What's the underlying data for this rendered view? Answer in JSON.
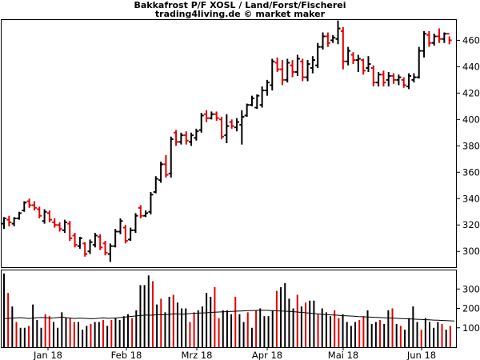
{
  "chart_data": [
    {
      "type": "ohlc",
      "title": "Bakkafrost P/F XOSL / Land/Forst/Fischerei",
      "subtitle": "trading4living.de © market maker",
      "ylim": [
        288,
        476
      ],
      "y_ticks": [
        300,
        320,
        340,
        360,
        380,
        400,
        420,
        440,
        460
      ],
      "x_labels": [
        "Jan 18",
        "Feb 18",
        "Mrz 18",
        "Apr 18",
        "Mai 18",
        "Jun 18"
      ],
      "up_color": "#000000",
      "down_color": "#e00000",
      "grid": false,
      "bars": [
        [
          326,
          317,
          321,
          325
        ],
        [
          327,
          319,
          324,
          322
        ],
        [
          326,
          319,
          321,
          325
        ],
        [
          330,
          324,
          325,
          329
        ],
        [
          338,
          330,
          331,
          337
        ],
        [
          340,
          333,
          338,
          335
        ],
        [
          338,
          331,
          335,
          333
        ],
        [
          334,
          325,
          332,
          327
        ],
        [
          332,
          321,
          323,
          330
        ],
        [
          331,
          322,
          329,
          324
        ],
        [
          325,
          318,
          322,
          320
        ],
        [
          322,
          315,
          320,
          317
        ],
        [
          324,
          314,
          316,
          322
        ],
        [
          323,
          308,
          321,
          310
        ],
        [
          314,
          303,
          312,
          305
        ],
        [
          311,
          302,
          304,
          310
        ],
        [
          307,
          296,
          306,
          298
        ],
        [
          309,
          298,
          300,
          307
        ],
        [
          314,
          303,
          305,
          312
        ],
        [
          313,
          301,
          311,
          303
        ],
        [
          308,
          297,
          306,
          299
        ],
        [
          306,
          292,
          298,
          304
        ],
        [
          317,
          303,
          304,
          315
        ],
        [
          325,
          313,
          315,
          323
        ],
        [
          320,
          306,
          318,
          308
        ],
        [
          318,
          308,
          309,
          316
        ],
        [
          329,
          314,
          316,
          327
        ],
        [
          335,
          325,
          333,
          327
        ],
        [
          331,
          326,
          327,
          329
        ],
        [
          345,
          328,
          330,
          343
        ],
        [
          357,
          344,
          345,
          355
        ],
        [
          368,
          352,
          354,
          366
        ],
        [
          373,
          356,
          366,
          358
        ],
        [
          387,
          356,
          359,
          385
        ],
        [
          392,
          380,
          390,
          383
        ],
        [
          390,
          381,
          383,
          388
        ],
        [
          391,
          381,
          388,
          384
        ],
        [
          390,
          380,
          383,
          388
        ],
        [
          393,
          384,
          386,
          391
        ],
        [
          405,
          390,
          392,
          403
        ],
        [
          407,
          398,
          404,
          401
        ],
        [
          406,
          400,
          401,
          404
        ],
        [
          406,
          399,
          404,
          401
        ],
        [
          402,
          385,
          400,
          387
        ],
        [
          404,
          382,
          388,
          395
        ],
        [
          400,
          393,
          398,
          395
        ],
        [
          401,
          391,
          394,
          398
        ],
        [
          407,
          381,
          396,
          402
        ],
        [
          412,
          402,
          403,
          411
        ],
        [
          418,
          410,
          411,
          416
        ],
        [
          419,
          408,
          409,
          418
        ],
        [
          425,
          409,
          411,
          422
        ],
        [
          430,
          418,
          422,
          428
        ],
        [
          446,
          422,
          426,
          444
        ],
        [
          447,
          436,
          443,
          438
        ],
        [
          445,
          426,
          438,
          430
        ],
        [
          446,
          428,
          430,
          443
        ],
        [
          445,
          432,
          441,
          436
        ],
        [
          449,
          433,
          436,
          446
        ],
        [
          446,
          429,
          444,
          432
        ],
        [
          445,
          429,
          432,
          442
        ],
        [
          448,
          435,
          439,
          445
        ],
        [
          458,
          439,
          441,
          455
        ],
        [
          466,
          453,
          455,
          463
        ],
        [
          466,
          455,
          463,
          458
        ],
        [
          464,
          458,
          460,
          462
        ],
        [
          475,
          457,
          461,
          469
        ],
        [
          470,
          438,
          467,
          444
        ],
        [
          455,
          441,
          444,
          452
        ],
        [
          451,
          442,
          449,
          445
        ],
        [
          449,
          436,
          445,
          446
        ],
        [
          446,
          434,
          445,
          437
        ],
        [
          448,
          436,
          439,
          442
        ],
        [
          441,
          425,
          439,
          428
        ],
        [
          436,
          425,
          428,
          434
        ],
        [
          437,
          425,
          434,
          428
        ],
        [
          436,
          425,
          430,
          433
        ],
        [
          435,
          427,
          433,
          430
        ],
        [
          434,
          426,
          430,
          432
        ],
        [
          432,
          424,
          430,
          426
        ],
        [
          435,
          423,
          425,
          433
        ],
        [
          435,
          428,
          430,
          432
        ],
        [
          455,
          431,
          432,
          452
        ],
        [
          467,
          447,
          452,
          465
        ],
        [
          467,
          455,
          464,
          458
        ],
        [
          465,
          456,
          458,
          463
        ],
        [
          469,
          458,
          463,
          461
        ],
        [
          466,
          458,
          461,
          465
        ],
        [
          463,
          457,
          465,
          460
        ]
      ]
    },
    {
      "type": "bar",
      "series": [
        {
          "values": [
            380,
            280,
            210,
            130,
            100,
            100,
            110,
            220,
            140,
            100,
            170,
            160,
            130,
            100,
            180,
            150,
            150,
            130,
            130,
            90,
            110,
            120,
            130,
            130,
            140,
            110,
            140,
            150,
            140,
            160,
            170,
            150,
            190,
            320,
            320,
            370,
            340,
            220,
            250,
            180,
            260,
            270,
            230,
            200,
            200,
            130,
            180,
            190,
            210,
            280,
            260,
            310,
            150,
            190,
            190,
            170,
            260,
            170,
            130,
            180,
            100,
            190,
            200,
            160,
            160,
            190,
            290,
            310,
            330,
            250,
            200,
            270,
            210,
            230,
            240,
            240,
            170,
            200,
            180,
            160,
            190,
            150,
            170,
            130,
            110,
            130,
            140,
            160,
            190,
            120,
            130,
            140,
            120,
            190,
            200,
            120,
            110,
            90,
            150,
            210,
            130,
            90,
            150,
            130,
            100,
            130,
            120,
            90,
            110
          ]
        },
        {
          "values": [
            148,
            149,
            150,
            151,
            152,
            150,
            148,
            150,
            152,
            153,
            152,
            150,
            151,
            153,
            155,
            152,
            150,
            148,
            150,
            149,
            148,
            147,
            148,
            150,
            151,
            149,
            150,
            151,
            153,
            155,
            158,
            160,
            162,
            164,
            166,
            165,
            166,
            168,
            167,
            168,
            170,
            172,
            171,
            170,
            172,
            174,
            175,
            176,
            177,
            178,
            180,
            181,
            182,
            183,
            184,
            185,
            186,
            187,
            188,
            189,
            189,
            190,
            190,
            190,
            189,
            188,
            187,
            186,
            185,
            184,
            182,
            180,
            178,
            176,
            174,
            172,
            170,
            168,
            167,
            166,
            165,
            163,
            162,
            161,
            160,
            158,
            157,
            156,
            155,
            154,
            153,
            152,
            151,
            150,
            149,
            148,
            147,
            146,
            145,
            144,
            143,
            142,
            141,
            140,
            139,
            138,
            137,
            136,
            135
          ]
        }
      ],
      "up_color": "#000000",
      "down_color": "#e00000",
      "ylim": [
        0,
        400
      ],
      "y_ticks": [
        100,
        200,
        300
      ]
    }
  ]
}
